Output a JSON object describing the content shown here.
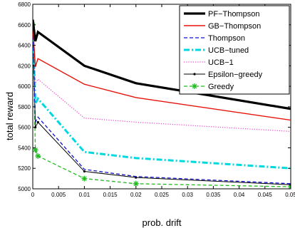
{
  "chart_data": {
    "type": "line",
    "title": "",
    "xlabel": "prob. drift",
    "ylabel": "total reward",
    "xlim": [
      0,
      0.05
    ],
    "ylim": [
      5000,
      6800
    ],
    "x_ticks": [
      0,
      0.005,
      0.01,
      0.015,
      0.02,
      0.025,
      0.03,
      0.035,
      0.04,
      0.045,
      0.05
    ],
    "x_tick_labels": [
      "0",
      "0.005",
      "0.01",
      "0.015",
      "0.02",
      "0.025",
      "0.03",
      "0.035",
      "0.04",
      "0.045",
      "0.05"
    ],
    "y_ticks": [
      5000,
      5200,
      5400,
      5600,
      5800,
      6000,
      6200,
      6400,
      6600,
      6800
    ],
    "y_tick_labels": [
      "5000",
      "5200",
      "5400",
      "5600",
      "5800",
      "6000",
      "6200",
      "6400",
      "6600",
      "6800"
    ],
    "grid": false,
    "legend_position": "top-right",
    "x": [
      0,
      0.0005,
      0.001,
      0.01,
      0.02,
      0.05
    ],
    "series": [
      {
        "name": "PF−Thompson",
        "color": "#000000",
        "style": "solid-thick",
        "marker": "none",
        "values": [
          6650,
          6440,
          6530,
          6200,
          6030,
          5780
        ]
      },
      {
        "name": "GB−Thompson",
        "color": "#e8120c",
        "style": "solid",
        "marker": "none",
        "values": [
          6600,
          6190,
          6270,
          6020,
          5890,
          5670
        ]
      },
      {
        "name": "Thompson",
        "color": "#1010cc",
        "style": "dashed",
        "marker": "none",
        "values": [
          6600,
          5650,
          5700,
          5190,
          5120,
          5050
        ]
      },
      {
        "name": "UCB−tuned",
        "color": "#00d8e0",
        "style": "dashdot-thick",
        "marker": "none",
        "values": [
          6600,
          5830,
          5880,
          5360,
          5300,
          5200
        ]
      },
      {
        "name": "UCB−1",
        "color": "#ee44cc",
        "style": "dotted",
        "marker": "none",
        "values": [
          6600,
          6030,
          6070,
          5690,
          5650,
          5560
        ]
      },
      {
        "name": "Epsilon−greedy",
        "color": "#000000",
        "style": "solid-thin",
        "marker": "dot",
        "values": [
          6600,
          5600,
          5650,
          5170,
          5110,
          5040
        ]
      },
      {
        "name": "Greedy",
        "color": "#22bb22",
        "style": "dashed",
        "marker": "star",
        "values": [
          6600,
          5380,
          5320,
          5100,
          5050,
          5020
        ]
      }
    ]
  }
}
